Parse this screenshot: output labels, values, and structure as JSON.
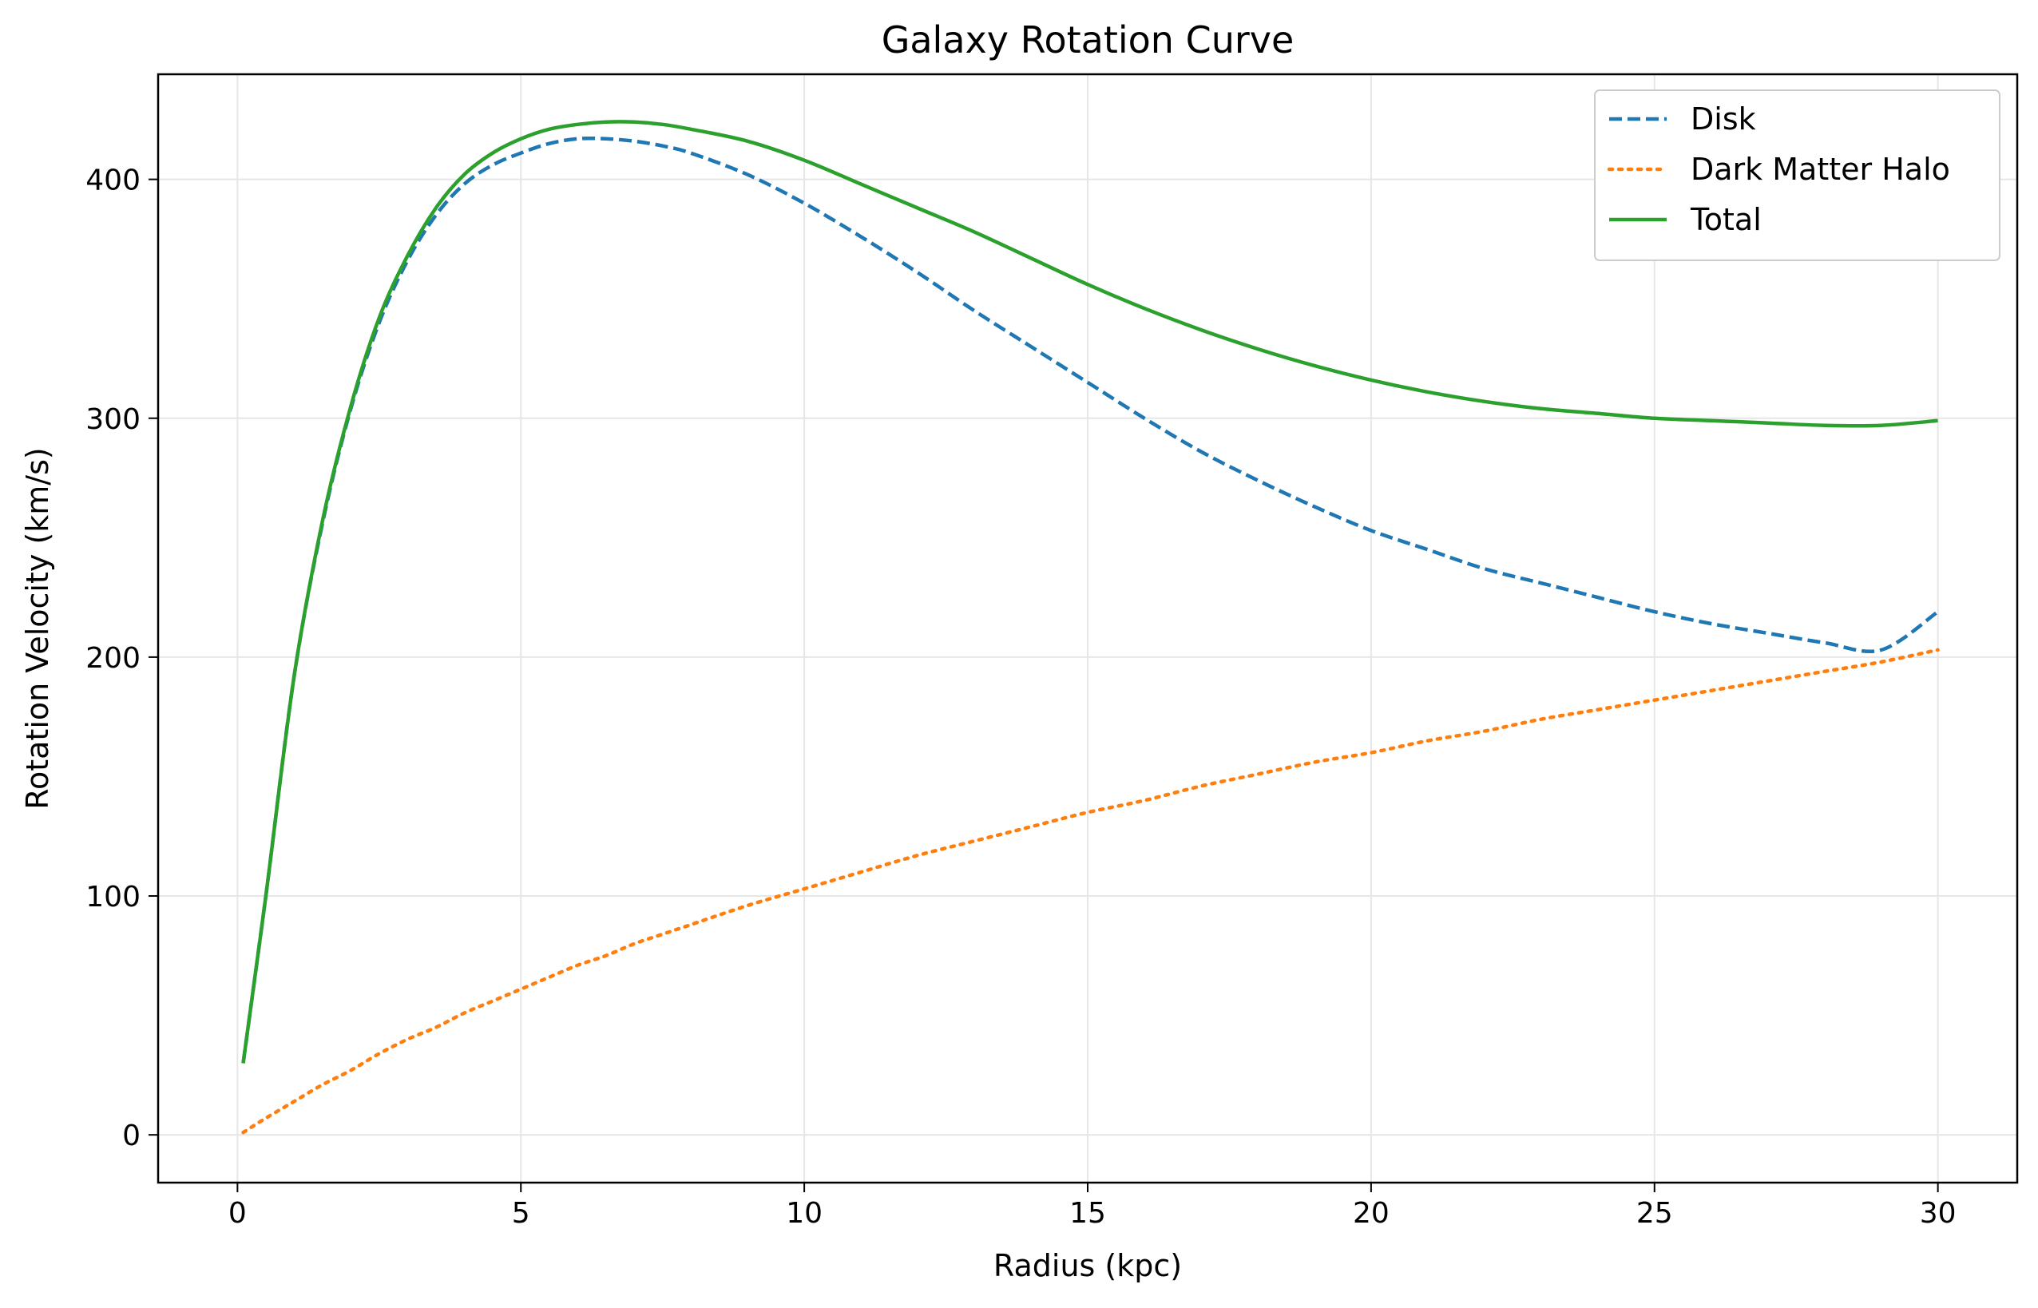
{
  "chart_data": {
    "type": "line",
    "title": "Galaxy Rotation Curve",
    "xlabel": "Radius (kpc)",
    "ylabel": "Rotation Velocity (km/s)",
    "xlim": [
      -1.4,
      31.4
    ],
    "ylim": [
      -20,
      444
    ],
    "xticks": [
      0,
      5,
      10,
      15,
      20,
      25,
      30
    ],
    "xtick_labels": [
      "0",
      "5",
      "10",
      "15",
      "20",
      "25",
      "30"
    ],
    "yticks": [
      0,
      100,
      200,
      300,
      400
    ],
    "ytick_labels": [
      "0",
      "100",
      "200",
      "300",
      "400"
    ],
    "grid": true,
    "legend_position": "top-right",
    "x": [
      0.1,
      0.5,
      1,
      1.5,
      2,
      2.5,
      3,
      3.5,
      4,
      4.5,
      5,
      5.5,
      6,
      6.5,
      7,
      7.5,
      8,
      9,
      10,
      11,
      12,
      13,
      14,
      15,
      16,
      17,
      18,
      19,
      20,
      21,
      22,
      23,
      24,
      25,
      26,
      27,
      28,
      29,
      30
    ],
    "series": [
      {
        "name": "Disk",
        "color": "#1f77b4",
        "style": "dashed",
        "values": [
          30,
          100,
          192,
          256,
          304,
          340,
          366,
          385,
          398,
          406,
          411,
          415,
          417,
          417,
          416,
          414,
          411,
          402,
          390,
          376,
          361,
          345,
          330,
          315,
          300,
          286,
          274,
          263,
          253,
          245,
          237,
          231,
          225,
          219,
          214,
          210,
          206,
          203,
          219
        ]
      },
      {
        "name": "Dark Matter Halo",
        "color": "#ff7f0e",
        "style": "dotted",
        "values": [
          1,
          7,
          14,
          21,
          27,
          34,
          40,
          45,
          51,
          56,
          61,
          66,
          71,
          75,
          80,
          84,
          88,
          96,
          103,
          110,
          117,
          123,
          129,
          135,
          140,
          146,
          151,
          156,
          160,
          165,
          169,
          174,
          178,
          182,
          186,
          190,
          194,
          198,
          203
        ]
      },
      {
        "name": "Total",
        "color": "#2ca02c",
        "style": "solid",
        "values": [
          30,
          100,
          192,
          257,
          305,
          342,
          368,
          388,
          402,
          411,
          417,
          421,
          423,
          424,
          424,
          423,
          421,
          416,
          408,
          398,
          388,
          378,
          367,
          356,
          346,
          337,
          329,
          322,
          316,
          311,
          307,
          304,
          302,
          300,
          299,
          298,
          297,
          297,
          299
        ]
      }
    ]
  }
}
